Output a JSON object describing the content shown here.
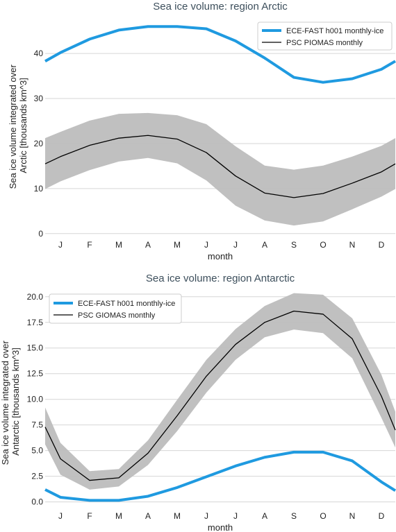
{
  "chart_data": [
    {
      "type": "line",
      "title": "Sea ice volume: region Arctic",
      "xlabel": "month",
      "ylabel": "Sea ice volume integrated over Arctic [thousands km^3]",
      "ylabel_lines": [
        "Sea ice volume integrated over",
        "Arctic [thousands km^3]"
      ],
      "categories": [
        "J",
        "F",
        "M",
        "A",
        "M",
        "J",
        "J",
        "A",
        "S",
        "O",
        "N",
        "D"
      ],
      "yticks": [
        "0",
        "10",
        "20",
        "30",
        "40"
      ],
      "ylim": [
        -0.5,
        48.5
      ],
      "grid": true,
      "legend_position": "upper-right",
      "series": [
        {
          "name": "ECE-FAST h001 monthly-ice",
          "color": "#1f9ae0",
          "values": [
            40.2,
            43.2,
            45.2,
            46.0,
            46.0,
            45.5,
            42.8,
            39.0,
            34.7,
            33.6,
            34.4,
            36.5
          ],
          "edge_values": [
            38.3,
            38.3
          ]
        },
        {
          "name": "PSC PIOMAS monthly",
          "color": "#000000",
          "values": [
            17.1,
            19.6,
            21.2,
            21.8,
            21.0,
            18.0,
            12.8,
            9.0,
            8.0,
            8.9,
            11.2,
            13.7
          ],
          "edge_values": [
            15.5,
            15.5
          ],
          "band_lower": [
            11.6,
            14.1,
            16.0,
            16.8,
            15.6,
            11.8,
            6.2,
            2.9,
            1.8,
            2.7,
            5.4,
            8.2
          ],
          "band_upper": [
            22.6,
            25.1,
            26.6,
            26.8,
            26.3,
            24.3,
            19.4,
            15.1,
            14.2,
            15.1,
            17.1,
            19.5
          ],
          "band_edge_lower": [
            9.9,
            9.9
          ],
          "band_edge_upper": [
            21.2,
            21.2
          ]
        }
      ]
    },
    {
      "type": "line",
      "title": "Sea ice volume: region Antarctic",
      "xlabel": "month",
      "ylabel": "Sea ice volume integrated over Antarctic [thousands km^3]",
      "ylabel_lines": [
        "Sea ice volume integrated over",
        "Antarctic [thousands km^3]"
      ],
      "categories": [
        "J",
        "F",
        "M",
        "A",
        "M",
        "J",
        "J",
        "A",
        "S",
        "O",
        "N",
        "D"
      ],
      "yticks": [
        "0.0",
        "2.5",
        "5.0",
        "7.5",
        "10.0",
        "12.5",
        "15.0",
        "17.5",
        "20.0"
      ],
      "ylim": [
        -0.5,
        21.0
      ],
      "grid": true,
      "legend_position": "upper-left",
      "series": [
        {
          "name": "ECE-FAST h001 monthly-ice",
          "color": "#1f9ae0",
          "values": [
            0.45,
            0.15,
            0.15,
            0.55,
            1.4,
            2.45,
            3.5,
            4.35,
            4.85,
            4.85,
            4.0,
            1.95
          ],
          "edge_values": [
            1.2,
            1.1
          ]
        },
        {
          "name": "PSC GIOMAS monthly",
          "color": "#000000",
          "values": [
            4.2,
            2.1,
            2.35,
            4.75,
            8.4,
            12.25,
            15.35,
            17.5,
            18.6,
            18.3,
            15.9,
            10.3
          ],
          "edge_values": [
            7.3,
            7.0
          ],
          "band_lower": [
            2.65,
            1.2,
            1.5,
            3.6,
            6.9,
            10.65,
            13.85,
            16.05,
            16.8,
            16.45,
            14.0,
            8.2
          ],
          "band_upper": [
            5.75,
            3.0,
            3.2,
            6.0,
            9.95,
            13.85,
            16.85,
            19.1,
            20.35,
            20.2,
            17.9,
            12.4
          ],
          "band_edge_lower": [
            5.6,
            5.3
          ],
          "band_edge_upper": [
            9.2,
            8.8
          ]
        }
      ]
    }
  ]
}
